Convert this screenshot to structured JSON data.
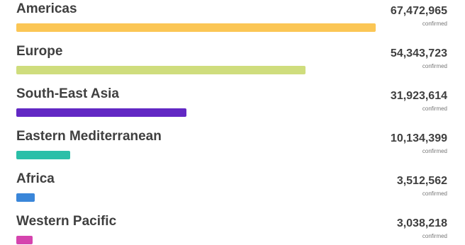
{
  "chart_data": {
    "type": "bar",
    "orientation": "horizontal",
    "categories": [
      "Americas",
      "Europe",
      "South-East Asia",
      "Eastern Mediterranean",
      "Africa",
      "Western Pacific"
    ],
    "values": [
      67472965,
      54343723,
      31923614,
      10134399,
      3512562,
      3038218
    ],
    "value_labels": [
      "67,472,965",
      "54,343,723",
      "31,923,614",
      "10,134,399",
      "3,512,562",
      "3,038,218"
    ],
    "unit_label": "confirmed",
    "colors": [
      "#fbc655",
      "#cfdd7d",
      "#6228c4",
      "#2bbfa8",
      "#3a86d9",
      "#d544ae"
    ],
    "xlim": [
      0,
      67472965
    ]
  }
}
